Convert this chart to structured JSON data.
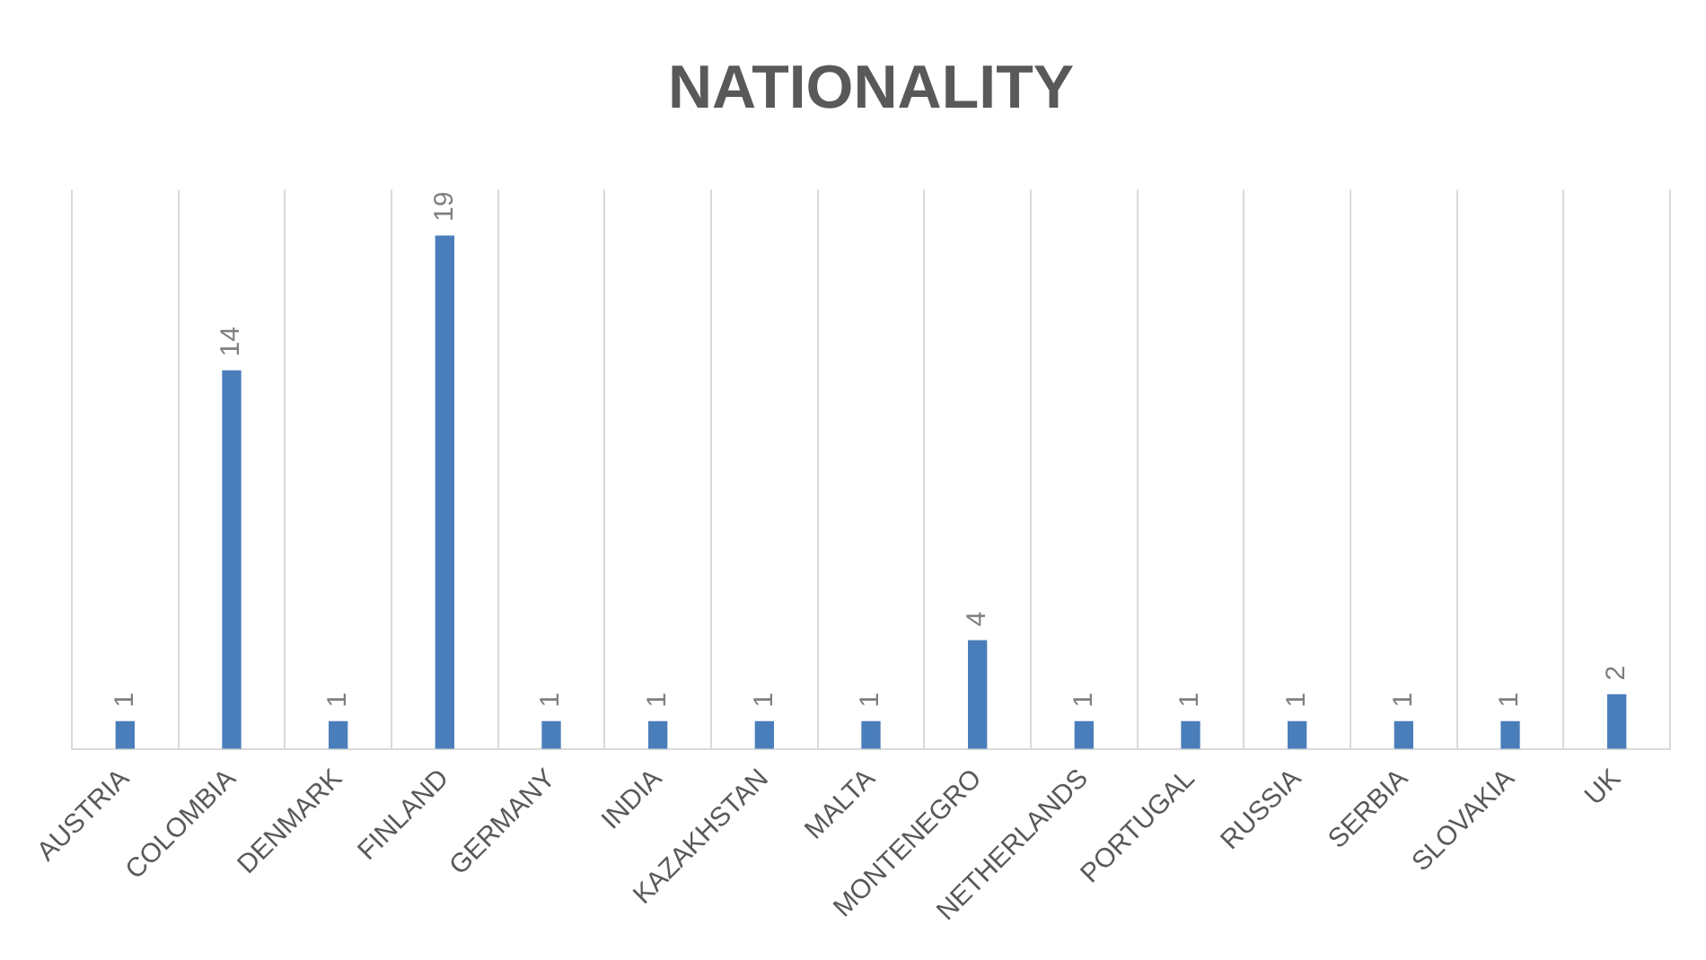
{
  "chart_data": {
    "type": "bar",
    "title": "NATIONALITY",
    "categories": [
      "AUSTRIA",
      "COLOMBIA",
      "DENMARK",
      "FINLAND",
      "GERMANY",
      "INDIA",
      "KAZAKHSTAN",
      "MALTA",
      "MONTENEGRO",
      "NETHERLANDS",
      "PORTUGAL",
      "RUSSIA",
      "SERBIA",
      "SLOVAKIA",
      "UK"
    ],
    "values": [
      1,
      14,
      1,
      19,
      1,
      1,
      1,
      1,
      4,
      1,
      1,
      1,
      1,
      1,
      2
    ],
    "color": "#4a7ebb",
    "data_labels": true,
    "grid": "x",
    "legend": false
  }
}
